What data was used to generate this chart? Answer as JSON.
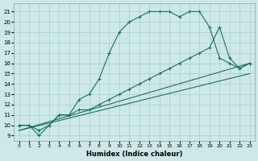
{
  "xlabel": "Humidex (Indice chaleur)",
  "background_color": "#cde8e8",
  "grid_color": "#a8cece",
  "line_color": "#1a7060",
  "xlim": [
    -0.5,
    23.5
  ],
  "ylim": [
    8.5,
    21.8
  ],
  "xticks": [
    0,
    1,
    2,
    3,
    4,
    5,
    6,
    7,
    8,
    9,
    10,
    11,
    12,
    13,
    14,
    15,
    16,
    17,
    18,
    19,
    20,
    21,
    22,
    23
  ],
  "yticks": [
    9,
    10,
    11,
    12,
    13,
    14,
    15,
    16,
    17,
    18,
    19,
    20,
    21
  ],
  "curve1_x": [
    0,
    1,
    2,
    3,
    4,
    5,
    6,
    7,
    8,
    9,
    10,
    11,
    12,
    13,
    14,
    15,
    16,
    17,
    18,
    19,
    20,
    21,
    22,
    23
  ],
  "curve1_y": [
    10.0,
    10.0,
    9.0,
    10.0,
    11.0,
    11.0,
    12.5,
    13.0,
    14.5,
    17.0,
    19.0,
    20.0,
    20.5,
    21.0,
    21.0,
    21.0,
    20.5,
    21.0,
    21.0,
    19.5,
    16.5,
    16.0,
    15.5,
    16.0
  ],
  "curve2_x": [
    0,
    1,
    2,
    3,
    4,
    5,
    6,
    7,
    8,
    9,
    10,
    11,
    12,
    13,
    14,
    15,
    16,
    17,
    18,
    19,
    20,
    21,
    22,
    23
  ],
  "curve2_y": [
    10.0,
    10.0,
    9.5,
    10.0,
    11.0,
    11.0,
    11.5,
    11.5,
    12.0,
    12.5,
    13.0,
    13.5,
    14.0,
    14.5,
    15.0,
    15.5,
    16.0,
    16.5,
    17.0,
    17.5,
    19.5,
    16.5,
    15.5,
    16.0
  ],
  "line3_x": [
    0,
    23
  ],
  "line3_y": [
    9.5,
    16.0
  ],
  "line4_x": [
    0,
    23
  ],
  "line4_y": [
    9.5,
    15.0
  ],
  "figsize": [
    3.2,
    2.0
  ],
  "dpi": 100
}
